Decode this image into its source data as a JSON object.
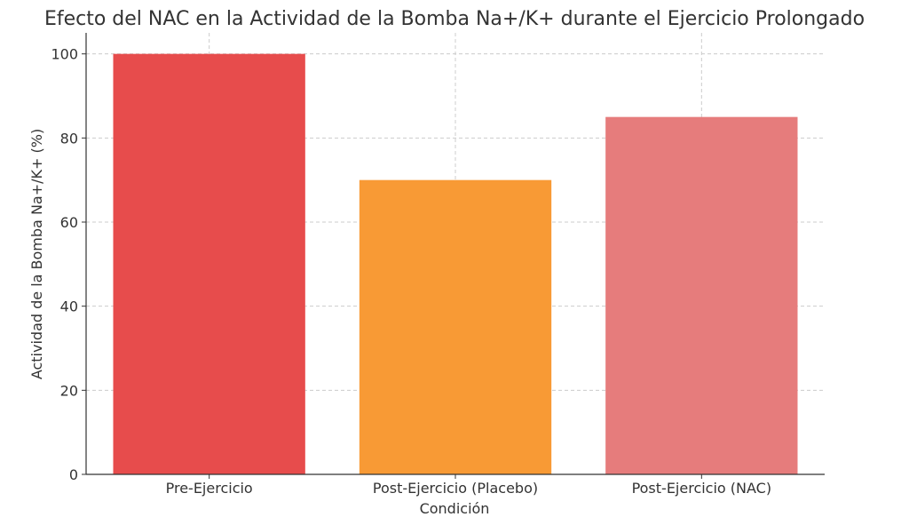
{
  "chart_data": {
    "type": "bar",
    "title": "Efecto del NAC en la Actividad de la Bomba Na+/K+ durante el Ejercicio Prolongado",
    "xlabel": "Condición",
    "ylabel": "Actividad de la Bomba Na+/K+ (%)",
    "categories": [
      "Pre-Ejercicio",
      "Post-Ejercicio (Placebo)",
      "Post-Ejercicio (NAC)"
    ],
    "values": [
      100,
      70,
      85
    ],
    "colors": [
      "#e74c4c",
      "#f89a35",
      "#e67c7c"
    ],
    "ylim": [
      0,
      105
    ],
    "yticks": [
      0,
      20,
      40,
      60,
      80,
      100
    ],
    "grid": true
  }
}
